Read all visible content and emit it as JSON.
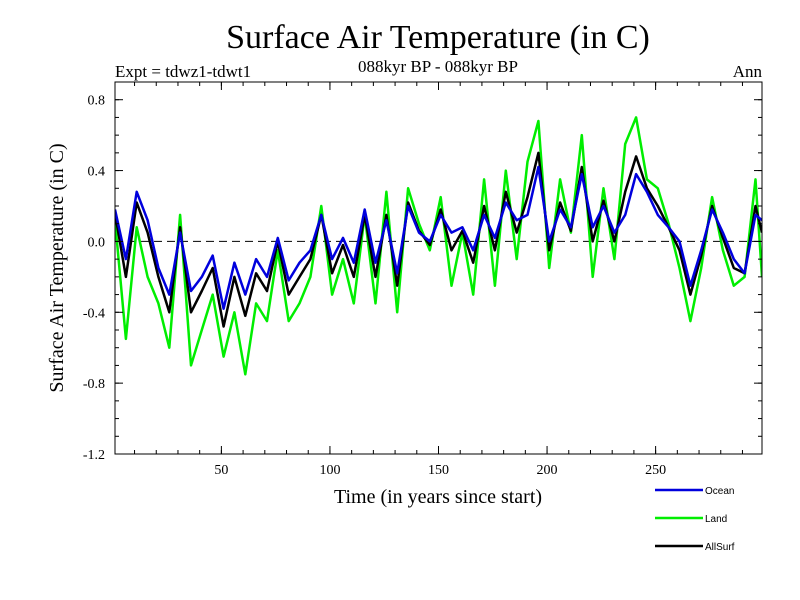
{
  "chart_data": {
    "type": "line",
    "title": "Surface Air Temperature (in C)",
    "subtitle_left": "Expt = tdwz1-tdwt1",
    "subtitle_center": "088kyr BP - 088kyr BP",
    "subtitle_right": "Ann",
    "xlabel": "Time (in years since start)",
    "ylabel": "Surface Air Temperature (in C)",
    "xlim": [
      1,
      299
    ],
    "ylim": [
      -1.2,
      0.9
    ],
    "x_ticks": [
      50,
      100,
      150,
      200,
      250
    ],
    "x_tick_labels": [
      "50",
      "100",
      "150",
      "200",
      "250"
    ],
    "y_ticks": [
      0.8,
      0.4,
      0.0,
      -0.4,
      -0.8,
      -1.2
    ],
    "y_tick_labels": [
      "0.8",
      "0.4",
      "0.0",
      "-0.4",
      "-0.8",
      "-1.2"
    ],
    "zero_line": 0.0,
    "grid": false,
    "legend_position": "bottom-right, below plot",
    "x": [
      1,
      6,
      11,
      16,
      21,
      26,
      31,
      36,
      41,
      46,
      51,
      56,
      61,
      66,
      71,
      76,
      81,
      86,
      91,
      96,
      101,
      106,
      111,
      116,
      121,
      126,
      131,
      136,
      141,
      146,
      151,
      156,
      161,
      166,
      171,
      176,
      181,
      186,
      191,
      196,
      201,
      206,
      211,
      216,
      221,
      226,
      231,
      236,
      241,
      246,
      251,
      256,
      261,
      266,
      271,
      276,
      281,
      286,
      291,
      296,
      299
    ],
    "series": [
      {
        "name": "Ocean",
        "color": "#0000dd",
        "values": [
          0.18,
          -0.1,
          0.28,
          0.12,
          -0.15,
          -0.3,
          0.05,
          -0.28,
          -0.2,
          -0.08,
          -0.38,
          -0.12,
          -0.3,
          -0.1,
          -0.2,
          0.02,
          -0.22,
          -0.12,
          -0.05,
          0.15,
          -0.1,
          0.02,
          -0.12,
          0.18,
          -0.12,
          0.12,
          -0.18,
          0.2,
          0.05,
          0.0,
          0.15,
          0.05,
          0.08,
          -0.05,
          0.15,
          0.02,
          0.22,
          0.12,
          0.15,
          0.42,
          0.0,
          0.18,
          0.08,
          0.38,
          0.08,
          0.2,
          0.05,
          0.15,
          0.38,
          0.28,
          0.15,
          0.08,
          0.0,
          -0.25,
          -0.05,
          0.18,
          0.05,
          -0.1,
          -0.18,
          0.15,
          0.12
        ]
      },
      {
        "name": "Land",
        "color": "#00ee00",
        "values": [
          0.12,
          -0.55,
          0.08,
          -0.2,
          -0.35,
          -0.6,
          0.15,
          -0.7,
          -0.5,
          -0.3,
          -0.65,
          -0.4,
          -0.75,
          -0.35,
          -0.45,
          -0.05,
          -0.45,
          -0.35,
          -0.2,
          0.2,
          -0.3,
          -0.1,
          -0.35,
          0.15,
          -0.35,
          0.28,
          -0.4,
          0.3,
          0.1,
          -0.05,
          0.25,
          -0.25,
          0.05,
          -0.3,
          0.35,
          -0.25,
          0.4,
          -0.1,
          0.45,
          0.68,
          -0.15,
          0.35,
          0.05,
          0.6,
          -0.2,
          0.3,
          -0.1,
          0.55,
          0.7,
          0.35,
          0.3,
          0.1,
          -0.15,
          -0.45,
          -0.15,
          0.25,
          -0.05,
          -0.25,
          -0.2,
          0.35,
          -0.2
        ]
      },
      {
        "name": "AllSurf",
        "color": "#000000",
        "values": [
          0.16,
          -0.2,
          0.22,
          0.05,
          -0.2,
          -0.4,
          0.08,
          -0.4,
          -0.28,
          -0.15,
          -0.48,
          -0.2,
          -0.42,
          -0.18,
          -0.28,
          0.0,
          -0.3,
          -0.2,
          -0.1,
          0.15,
          -0.18,
          -0.02,
          -0.2,
          0.15,
          -0.2,
          0.15,
          -0.25,
          0.22,
          0.06,
          -0.02,
          0.18,
          -0.05,
          0.06,
          -0.12,
          0.2,
          -0.05,
          0.28,
          0.05,
          0.25,
          0.5,
          -0.05,
          0.22,
          0.06,
          0.42,
          0.0,
          0.23,
          0.0,
          0.28,
          0.48,
          0.3,
          0.2,
          0.08,
          -0.05,
          -0.3,
          -0.08,
          0.2,
          0.02,
          -0.15,
          -0.18,
          0.2,
          0.05
        ]
      }
    ]
  }
}
